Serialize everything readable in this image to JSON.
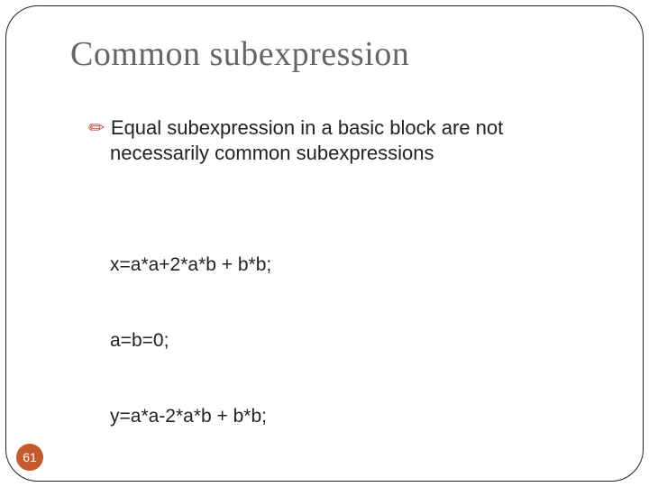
{
  "slide": {
    "title": "Common subexpression",
    "title_color": "#666666",
    "title_fontsize": 38,
    "bullet": {
      "icon_glyph": "✏",
      "icon_color": "#c0504d",
      "line1": "Equal subexpression in a basic block are not",
      "line2": "necessarily common subexpressions",
      "text_color": "#222222",
      "fontsize": 22
    },
    "code": {
      "line1": "x=a*a+2*a*b + b*b;",
      "line2": "a=b=0;",
      "line3": "y=a*a-2*a*b + b*b;",
      "fontsize": 21,
      "text_color": "#222222"
    },
    "page_number": "61",
    "badge_bg": "#c55a2e",
    "badge_text_color": "#ffffff",
    "frame_border_color": "#222222",
    "frame_radius": 36,
    "background_color": "#ffffff"
  }
}
